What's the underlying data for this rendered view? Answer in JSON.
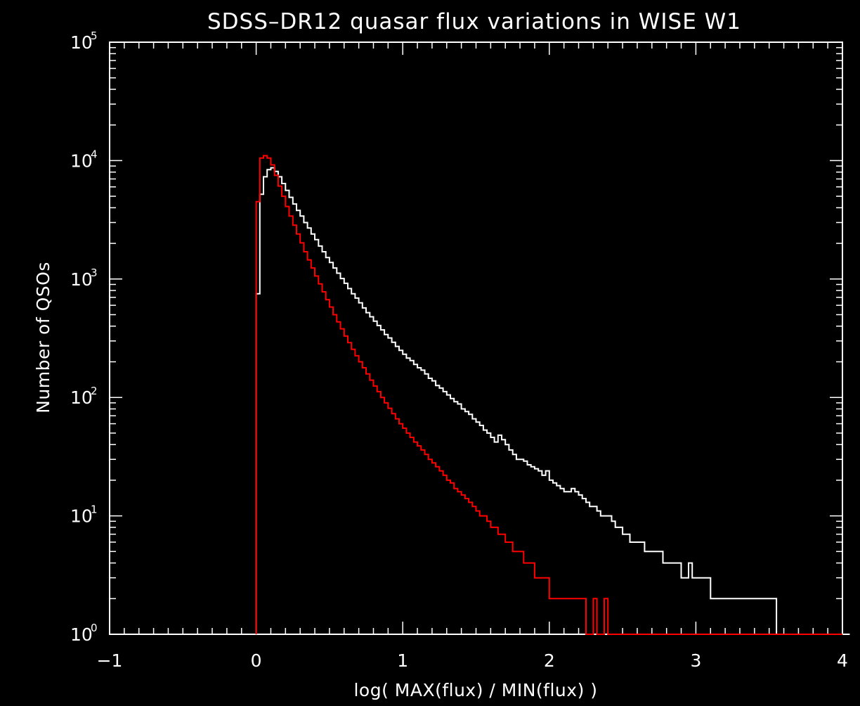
{
  "chart_data": {
    "type": "line",
    "title": "SDSS–DR12 quasar flux variations in WISE W1",
    "xlabel": "log( MAX(flux) / MIN(flux) )",
    "ylabel": "Number of QSOs",
    "xlim": [
      -1,
      4
    ],
    "ylim": [
      1,
      100000
    ],
    "y_scale": "log",
    "x_ticks": [
      {
        "value": -1,
        "label": "−1"
      },
      {
        "value": 0,
        "label": "0"
      },
      {
        "value": 1,
        "label": "1"
      },
      {
        "value": 2,
        "label": "2"
      },
      {
        "value": 3,
        "label": "3"
      },
      {
        "value": 4,
        "label": "4"
      }
    ],
    "y_ticks": [
      {
        "value": 1,
        "base": "10",
        "exp": "0"
      },
      {
        "value": 10,
        "base": "10",
        "exp": "1"
      },
      {
        "value": 100,
        "base": "10",
        "exp": "2"
      },
      {
        "value": 1000,
        "base": "10",
        "exp": "3"
      },
      {
        "value": 10000,
        "base": "10",
        "exp": "4"
      },
      {
        "value": 100000,
        "base": "10",
        "exp": "5"
      }
    ],
    "bin_width": 0.025,
    "x_start": 0,
    "series": [
      {
        "color": "#ffffff",
        "values": [
          750,
          5200,
          7300,
          8400,
          8700,
          8100,
          7300,
          6400,
          5600,
          4900,
          4300,
          3800,
          3400,
          3000,
          2700,
          2400,
          2150,
          1900,
          1700,
          1520,
          1380,
          1240,
          1120,
          1010,
          920,
          830,
          750,
          690,
          630,
          570,
          520,
          480,
          440,
          405,
          372,
          340,
          318,
          292,
          270,
          250,
          232,
          215,
          205,
          190,
          178,
          170,
          158,
          145,
          138,
          126,
          120,
          112,
          105,
          98,
          92,
          88,
          80,
          76,
          72,
          66,
          62,
          58,
          53,
          50,
          46,
          42,
          48,
          44,
          40,
          36,
          33,
          30,
          30,
          29,
          27,
          26,
          25,
          24,
          22,
          24,
          20,
          19,
          18,
          17,
          16,
          16,
          17,
          16,
          15,
          14,
          13,
          12,
          12,
          11,
          10,
          10,
          10,
          9,
          8,
          8,
          7,
          7,
          6,
          6,
          6,
          6,
          5,
          5,
          5,
          5,
          5,
          4,
          4,
          4,
          4,
          4,
          3,
          3,
          4,
          3,
          3,
          3,
          3,
          3,
          2,
          2,
          2,
          2,
          2,
          2,
          2,
          2,
          2,
          2,
          2,
          2,
          2,
          2,
          2,
          2,
          2,
          2,
          1,
          1,
          1,
          1,
          1,
          1,
          1,
          1,
          1,
          1,
          1,
          1,
          1,
          1,
          1,
          1,
          1,
          1,
          1,
          1
        ]
      },
      {
        "color": "#ff0000",
        "values": [
          4500,
          10500,
          11000,
          10500,
          9200,
          7500,
          6100,
          5000,
          4100,
          3400,
          2850,
          2400,
          2020,
          1700,
          1450,
          1240,
          1060,
          910,
          780,
          670,
          580,
          500,
          435,
          380,
          330,
          290,
          255,
          225,
          200,
          178,
          158,
          140,
          125,
          112,
          100,
          90,
          81,
          73,
          66,
          60,
          55,
          50,
          46,
          42,
          39,
          36,
          33,
          30,
          28,
          26,
          24,
          22,
          20,
          19,
          17,
          16,
          15,
          14,
          13,
          12,
          11,
          10,
          10,
          9,
          8,
          8,
          7,
          7,
          6,
          6,
          5,
          5,
          5,
          4,
          4,
          4,
          3,
          3,
          3,
          3,
          2,
          2,
          2,
          2,
          2,
          2,
          2,
          2,
          2,
          2,
          1,
          1,
          2,
          1,
          1,
          2,
          1,
          1,
          1,
          1,
          1,
          1,
          1,
          1,
          1,
          1,
          1,
          1,
          1,
          1,
          1,
          1,
          1,
          1,
          1,
          1,
          1,
          1,
          1,
          1,
          1,
          1,
          1,
          1,
          1,
          1,
          1,
          1,
          1,
          1,
          1,
          1,
          1,
          1,
          1,
          1,
          1,
          1,
          1,
          1,
          1,
          1,
          1,
          1,
          1,
          1,
          1,
          1,
          1,
          1,
          1,
          1,
          1,
          1,
          1,
          1,
          1,
          1,
          1,
          1
        ]
      }
    ]
  }
}
